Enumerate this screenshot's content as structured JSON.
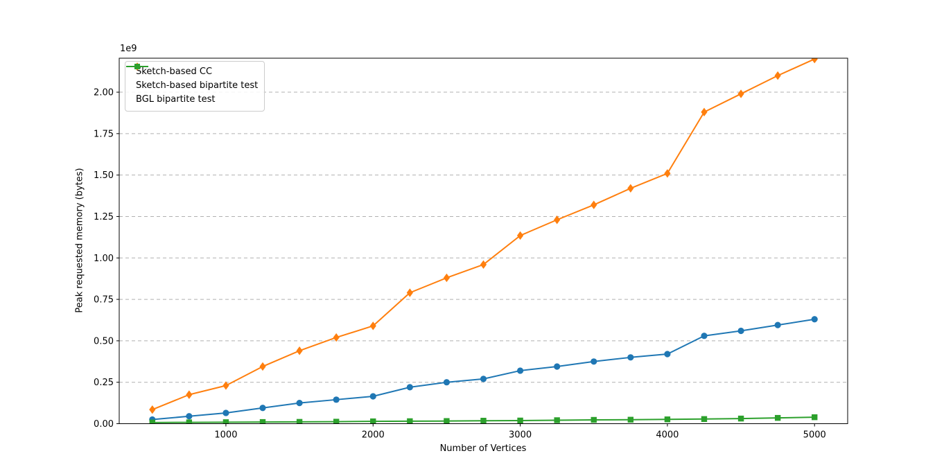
{
  "figure": {
    "background": "#ffffff"
  },
  "colors": {
    "grid": "#b0b0b0",
    "spine": "#000000",
    "text": "#000000",
    "legend_border": "#cccccc",
    "series_blue": "#1f77b4",
    "series_orange": "#ff7f0e",
    "series_green": "#2ca02c"
  },
  "chart_data": {
    "type": "line",
    "title": "",
    "xlabel": "Number of Vertices",
    "ylabel": "Peak requested memory (bytes)",
    "y_offset_text": "1e9",
    "unit": "values in units of 1e9 bytes",
    "grid": "horizontal dashed",
    "legend_position": "upper left",
    "xlim": [
      275,
      5225
    ],
    "ylim": [
      0,
      2.205
    ],
    "xticks": {
      "values": [
        1000,
        2000,
        3000,
        4000,
        5000
      ],
      "labels": [
        "1000",
        "2000",
        "3000",
        "4000",
        "5000"
      ]
    },
    "yticks": {
      "values": [
        0,
        0.25,
        0.5,
        0.75,
        1.0,
        1.25,
        1.5,
        1.75,
        2.0
      ],
      "labels": [
        "0.00",
        "0.25",
        "0.50",
        "0.75",
        "1.00",
        "1.25",
        "1.50",
        "1.75",
        "2.00"
      ]
    },
    "x": [
      500,
      750,
      1000,
      1250,
      1500,
      1750,
      2000,
      2250,
      2500,
      2750,
      3000,
      3250,
      3500,
      3750,
      4000,
      4250,
      4500,
      4750,
      5000
    ],
    "series": [
      {
        "name": "Sketch-based CC",
        "color": "#1f77b4",
        "marker": "circle",
        "values": [
          0.025,
          0.045,
          0.065,
          0.095,
          0.125,
          0.145,
          0.165,
          0.22,
          0.25,
          0.27,
          0.32,
          0.345,
          0.375,
          0.4,
          0.42,
          0.53,
          0.56,
          0.595,
          0.63
        ]
      },
      {
        "name": "Sketch-based bipartite test",
        "color": "#ff7f0e",
        "marker": "diamond",
        "values": [
          0.085,
          0.175,
          0.23,
          0.345,
          0.44,
          0.52,
          0.59,
          0.79,
          0.88,
          0.96,
          1.135,
          1.23,
          1.32,
          1.42,
          1.51,
          1.88,
          1.99,
          2.1,
          2.2
        ]
      },
      {
        "name": "BGL bipartite test",
        "color": "#2ca02c",
        "marker": "square",
        "values": [
          0.007,
          0.008,
          0.009,
          0.01,
          0.011,
          0.012,
          0.014,
          0.015,
          0.016,
          0.018,
          0.019,
          0.021,
          0.023,
          0.024,
          0.026,
          0.028,
          0.031,
          0.035,
          0.039
        ]
      }
    ]
  }
}
